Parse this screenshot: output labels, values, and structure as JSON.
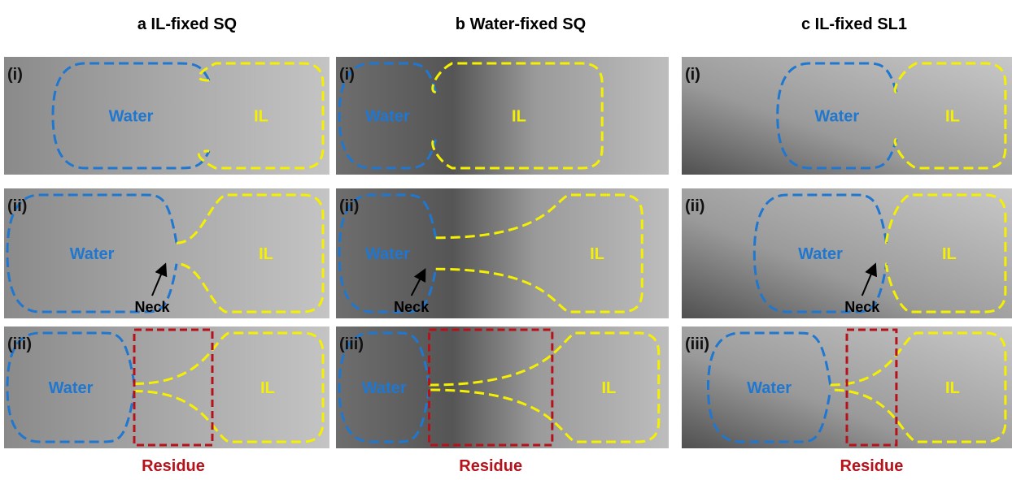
{
  "columns": [
    {
      "letter": "a",
      "title": "IL-fixed SQ",
      "panels": [
        {
          "label": "(i)",
          "water": "Water",
          "il": "IL"
        },
        {
          "label": "(ii)",
          "water": "Water",
          "il": "IL",
          "neck": "Neck"
        },
        {
          "label": "(iii)",
          "water": "Water",
          "il": "IL"
        }
      ],
      "residue": "Residue"
    },
    {
      "letter": "b",
      "title": "Water-fixed SQ",
      "panels": [
        {
          "label": "(i)",
          "water": "Water",
          "il": "IL"
        },
        {
          "label": "(ii)",
          "water": "Water",
          "il": "IL",
          "neck": "Neck"
        },
        {
          "label": "(iii)",
          "water": "Water",
          "il": "IL"
        }
      ],
      "residue": "Residue"
    },
    {
      "letter": "c",
      "title": "IL-fixed SL1",
      "panels": [
        {
          "label": "(i)",
          "water": "Water",
          "il": "IL"
        },
        {
          "label": "(ii)",
          "water": "Water",
          "il": "IL",
          "neck": "Neck"
        },
        {
          "label": "(iii)",
          "water": "Water",
          "il": "IL"
        }
      ],
      "residue": "Residue"
    }
  ]
}
